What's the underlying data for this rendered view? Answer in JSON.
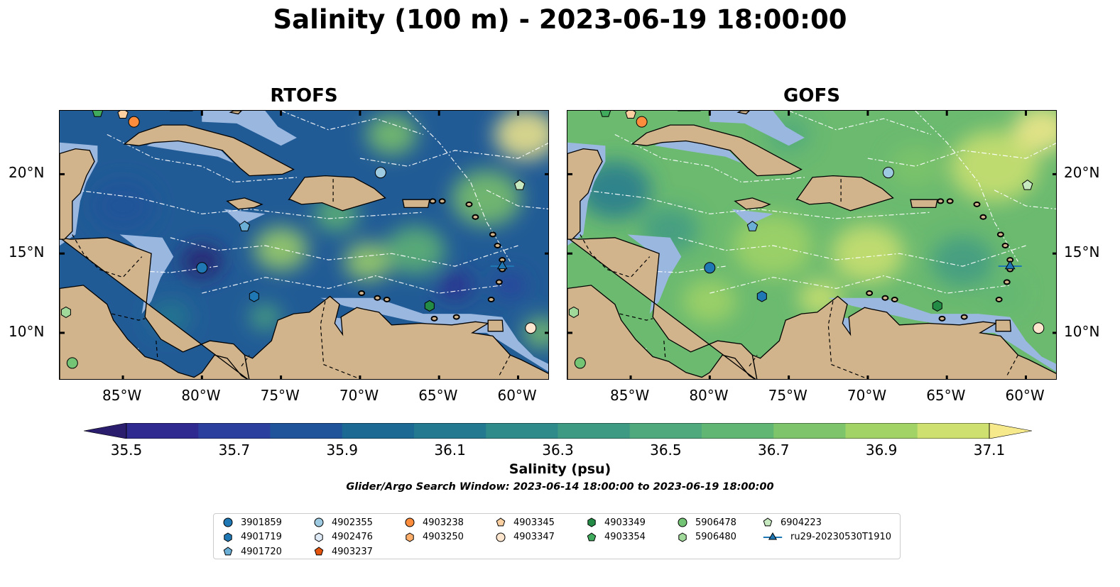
{
  "title": "Salinity (100 m) - 2023-06-19 18:00:00",
  "panels": [
    {
      "title": "RTOFS"
    },
    {
      "title": "GOFS"
    }
  ],
  "axes": {
    "lon_labels": [
      "85°W",
      "80°W",
      "75°W",
      "70°W",
      "65°W",
      "60°W"
    ],
    "lat_labels": [
      "20°N",
      "15°N",
      "10°N"
    ]
  },
  "colorbar": {
    "label": "Salinity (psu)",
    "ticks": [
      "35.5",
      "35.7",
      "35.9",
      "36.1",
      "36.3",
      "36.5",
      "36.7",
      "36.9",
      "37.1"
    ],
    "colors": [
      "#2b1d6e",
      "#2f2a8f",
      "#2a3f9e",
      "#1f549a",
      "#1c6a93",
      "#23798f",
      "#2f8a8a",
      "#3f9a84",
      "#50a97d",
      "#62b673",
      "#7ec46a",
      "#a2d366",
      "#cde070",
      "#f5e98b"
    ]
  },
  "search_window": "Glider/Argo Search Window: 2023-06-14 18:00:00 to 2023-06-19 18:00:00",
  "legend": [
    {
      "id": "3901859",
      "marker": "circle",
      "color": "#1f77b4"
    },
    {
      "id": "4901719",
      "marker": "hexagon",
      "color": "#1f77b4"
    },
    {
      "id": "4901720",
      "marker": "pentagon",
      "color": "#6baed6"
    },
    {
      "id": "4902355",
      "marker": "circle",
      "color": "#9ecae1"
    },
    {
      "id": "4902476",
      "marker": "hexagon",
      "color": "#deebf7"
    },
    {
      "id": "4903237",
      "marker": "pentagon",
      "color": "#e6550d"
    },
    {
      "id": "4903238",
      "marker": "circle",
      "color": "#fd8d3c"
    },
    {
      "id": "4903250",
      "marker": "hexagon",
      "color": "#fdae6b"
    },
    {
      "id": "4903345",
      "marker": "pentagon",
      "color": "#fdd0a2"
    },
    {
      "id": "4903347",
      "marker": "circle",
      "color": "#fee6ce"
    },
    {
      "id": "4903349",
      "marker": "hexagon",
      "color": "#238b45"
    },
    {
      "id": "4903354",
      "marker": "pentagon",
      "color": "#41ab5d"
    },
    {
      "id": "5906478",
      "marker": "circle",
      "color": "#74c476"
    },
    {
      "id": "5906480",
      "marker": "hexagon",
      "color": "#a1d99b"
    },
    {
      "id": "6904223",
      "marker": "pentagon",
      "color": "#c7e9c0"
    },
    {
      "id": "ru29-20230530T1910",
      "marker": "triangle-line",
      "color": "#1f77b4"
    }
  ],
  "map_colors": {
    "land": "#d2b48c",
    "shallow": "#9ab7e0",
    "deep_pacific": "#2b1d6e"
  }
}
